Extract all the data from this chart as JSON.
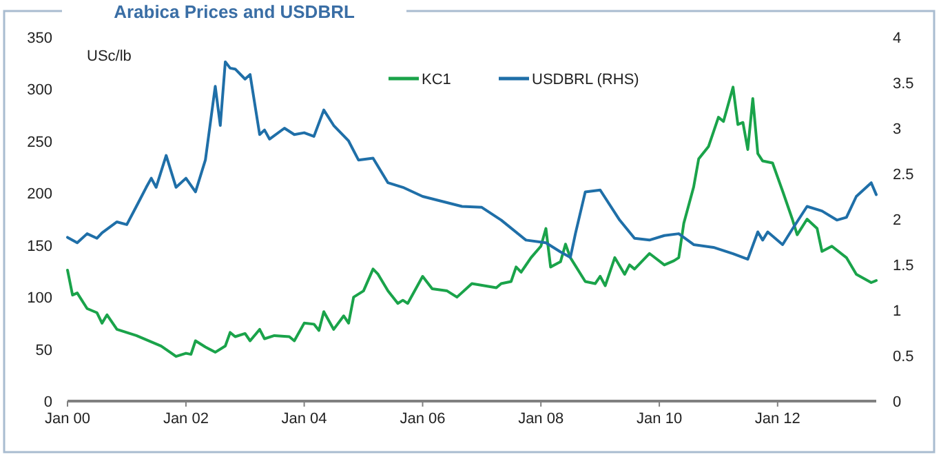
{
  "chart_data": {
    "type": "line",
    "title": "Arabica Prices and USDBRL",
    "ylabel": "USc/lb",
    "legend": "top",
    "xlim": [
      "2000-01",
      "2013-09"
    ],
    "xticks": [
      {
        "value": "2000-01",
        "label": "Jan 00"
      },
      {
        "value": "2002-01",
        "label": "Jan 02"
      },
      {
        "value": "2004-01",
        "label": "Jan 04"
      },
      {
        "value": "2006-01",
        "label": "Jan 06"
      },
      {
        "value": "2008-01",
        "label": "Jan 08"
      },
      {
        "value": "2010-01",
        "label": "Jan 10"
      },
      {
        "value": "2012-01",
        "label": "Jan 12"
      }
    ],
    "ylim": [
      0,
      350
    ],
    "yticks": [
      0,
      50,
      100,
      150,
      200,
      250,
      300,
      350
    ],
    "y2lim": [
      0,
      4
    ],
    "y2ticks": [
      0,
      0.5,
      1,
      1.5,
      2,
      2.5,
      3,
      3.5,
      4
    ],
    "series": [
      {
        "name": "KC1",
        "color": "#1aa34a",
        "x": [
          "2000-01",
          "2000-02",
          "2000-03",
          "2000-05",
          "2000-07",
          "2000-08",
          "2000-09",
          "2000-11",
          "2001-03",
          "2001-08",
          "2001-11",
          "2002-01",
          "2002-02",
          "2002-03",
          "2002-05",
          "2002-07",
          "2002-09",
          "2002-10",
          "2002-11",
          "2003-01",
          "2003-02",
          "2003-04",
          "2003-05",
          "2003-07",
          "2003-10",
          "2003-11",
          "2004-01",
          "2004-03",
          "2004-04",
          "2004-05",
          "2004-07",
          "2004-09",
          "2004-10",
          "2004-11",
          "2005-01",
          "2005-03",
          "2005-04",
          "2005-06",
          "2005-08",
          "2005-09",
          "2005-10",
          "2006-01",
          "2006-03",
          "2006-06",
          "2006-08",
          "2006-11",
          "2007-04",
          "2007-05",
          "2007-07",
          "2007-08",
          "2007-09",
          "2007-11",
          "2008-01",
          "2008-02",
          "2008-03",
          "2008-05",
          "2008-06",
          "2008-07",
          "2008-10",
          "2008-12",
          "2009-01",
          "2009-02",
          "2009-04",
          "2009-06",
          "2009-07",
          "2009-08",
          "2009-11",
          "2010-02",
          "2010-04",
          "2010-05",
          "2010-06",
          "2010-08",
          "2010-09",
          "2010-11",
          "2011-01",
          "2011-02",
          "2011-04",
          "2011-05",
          "2011-06",
          "2011-07",
          "2011-08",
          "2011-09",
          "2011-10",
          "2011-12",
          "2012-02",
          "2012-04",
          "2012-05",
          "2012-07",
          "2012-09",
          "2012-10",
          "2012-12",
          "2013-03",
          "2013-05",
          "2013-08",
          "2013-09"
        ],
        "values": [
          126,
          102,
          104,
          89,
          85,
          75,
          83,
          69,
          63,
          53,
          43,
          46,
          45,
          58,
          52,
          47,
          53,
          66,
          62,
          65,
          58,
          69,
          60,
          63,
          62,
          58,
          75,
          74,
          68,
          86,
          69,
          82,
          75,
          100,
          106,
          127,
          122,
          106,
          94,
          97,
          94,
          120,
          108,
          106,
          100,
          113,
          109,
          113,
          115,
          129,
          124,
          138,
          149,
          166,
          129,
          134,
          151,
          138,
          115,
          113,
          120,
          111,
          138,
          122,
          131,
          127,
          142,
          131,
          135,
          138,
          171,
          206,
          233,
          245,
          273,
          269,
          302,
          266,
          268,
          242,
          291,
          238,
          231,
          229,
          202,
          175,
          160,
          175,
          166,
          144,
          149,
          138,
          122,
          114,
          116
        ]
      },
      {
        "name": "USDBRL (RHS)",
        "color": "#1f6fa8",
        "axis": "y2",
        "x": [
          "2000-01",
          "2000-03",
          "2000-05",
          "2000-07",
          "2000-08",
          "2000-11",
          "2001-01",
          "2001-03",
          "2001-05",
          "2001-06",
          "2001-07",
          "2001-09",
          "2001-11",
          "2002-01",
          "2002-03",
          "2002-05",
          "2002-07",
          "2002-08",
          "2002-09",
          "2002-10",
          "2002-11",
          "2003-01",
          "2003-02",
          "2003-04",
          "2003-05",
          "2003-06",
          "2003-09",
          "2003-11",
          "2004-01",
          "2004-03",
          "2004-05",
          "2004-07",
          "2004-10",
          "2004-12",
          "2005-03",
          "2005-06",
          "2005-09",
          "2006-01",
          "2006-09",
          "2007-01",
          "2007-05",
          "2007-10",
          "2008-02",
          "2008-05",
          "2008-07",
          "2008-08",
          "2008-10",
          "2009-01",
          "2009-05",
          "2009-08",
          "2009-11",
          "2010-02",
          "2010-05",
          "2010-08",
          "2010-12",
          "2011-04",
          "2011-07",
          "2011-09",
          "2011-10",
          "2011-11",
          "2012-02",
          "2012-04",
          "2012-07",
          "2012-10",
          "2013-01",
          "2013-03",
          "2013-05",
          "2013-08",
          "2013-09"
        ],
        "values": [
          1.8,
          1.74,
          1.84,
          1.79,
          1.85,
          1.97,
          1.94,
          2.14,
          2.35,
          2.45,
          2.35,
          2.7,
          2.35,
          2.45,
          2.3,
          2.65,
          3.46,
          3.03,
          3.73,
          3.66,
          3.65,
          3.54,
          3.59,
          2.93,
          2.98,
          2.88,
          3.0,
          2.93,
          2.95,
          2.91,
          3.2,
          3.03,
          2.86,
          2.65,
          2.67,
          2.4,
          2.35,
          2.25,
          2.14,
          2.13,
          1.99,
          1.77,
          1.74,
          1.64,
          1.58,
          1.84,
          2.3,
          2.32,
          1.99,
          1.79,
          1.77,
          1.82,
          1.84,
          1.72,
          1.69,
          1.62,
          1.56,
          1.86,
          1.77,
          1.86,
          1.72,
          1.89,
          2.14,
          2.09,
          1.99,
          2.02,
          2.25,
          2.4,
          2.27
        ]
      }
    ]
  }
}
